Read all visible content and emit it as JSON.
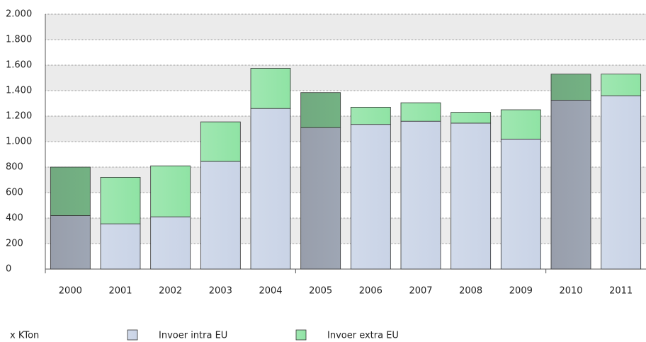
{
  "chart_data": {
    "type": "stacked-bar",
    "unit_label": "x KTon",
    "categories": [
      "2000",
      "2001",
      "2002",
      "2003",
      "2004",
      "2005",
      "2006",
      "2007",
      "2008",
      "2009",
      "2010",
      "2011"
    ],
    "series": [
      {
        "name": "Invoer intra EU",
        "color": "#c9d3e6",
        "values": [
          420,
          355,
          410,
          845,
          1260,
          1110,
          1135,
          1160,
          1145,
          1020,
          1325,
          1360
        ]
      },
      {
        "name": "Invoer extra EU",
        "color": "#8fe3a4",
        "values": [
          380,
          365,
          400,
          310,
          315,
          275,
          135,
          145,
          85,
          230,
          205,
          170
        ]
      }
    ],
    "ylim": [
      0,
      2000
    ],
    "yticks": [
      0,
      200,
      400,
      600,
      800,
      {
        "value": 1000,
        "label": "1.000"
      },
      {
        "value": 1200,
        "label": "1.200"
      },
      {
        "value": 1400,
        "label": "1.400"
      },
      {
        "value": 1600,
        "label": "1.600"
      },
      {
        "value": 1800,
        "label": "1.800"
      },
      {
        "value": 2000,
        "label": "2.000"
      }
    ],
    "grid": true
  }
}
